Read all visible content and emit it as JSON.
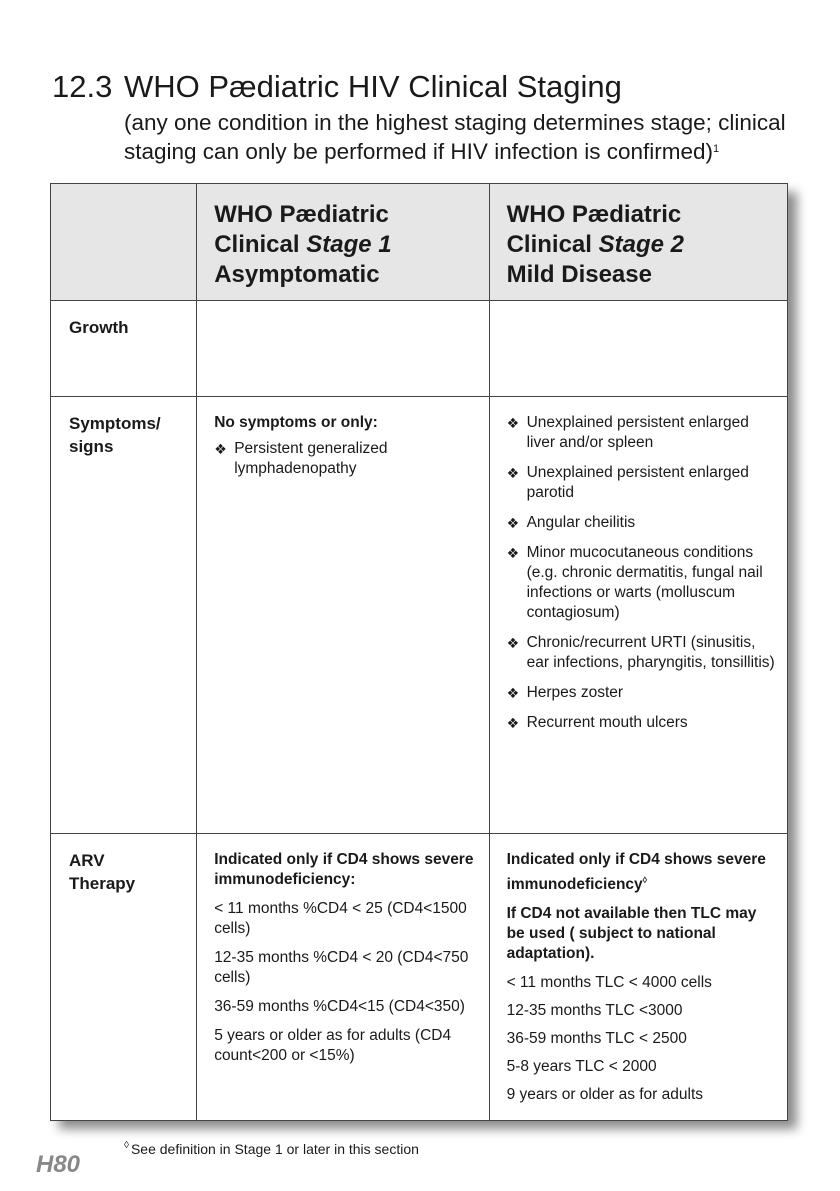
{
  "section": {
    "number": "12.3",
    "title": "WHO Pædiatric HIV Clinical Staging",
    "subtitle": "(any one condition in the highest staging determines stage; clinical staging can only be performed if HIV infection is confirmed)",
    "subtitle_sup": "1"
  },
  "table": {
    "headers": [
      {
        "line1": "",
        "line2_prefix": "",
        "line2_em": "",
        "line3": ""
      },
      {
        "line1": "WHO Pædiatric",
        "line2_prefix": "Clinical ",
        "line2_em": "Stage 1",
        "line3": "Asymptomatic"
      },
      {
        "line1": "WHO Pædiatric",
        "line2_prefix": "Clinical ",
        "line2_em": "Stage 2",
        "line3": "Mild Disease"
      }
    ],
    "rows": {
      "growth": {
        "label": "Growth"
      },
      "signs": {
        "label": "Symptoms/ signs",
        "stage1_intro": "No symptoms or only:",
        "stage1_items": [
          "Persistent generalized lymphadenopathy"
        ],
        "stage2_items": [
          "Unexplained persistent enlarged liver and/or spleen",
          "Unexplained persistent enlarged parotid",
          "Angular cheilitis",
          "Minor mucocutaneous conditions (e.g. chronic dermatitis, fungal nail infections or warts (molluscum contagiosum)",
          "Chronic/recurrent URTI (sinusitis, ear infections, pharyngitis, tonsillitis)",
          "Herpes zoster",
          "Recurrent mouth ulcers"
        ]
      },
      "arv": {
        "label": "ARV Therapy",
        "stage1_intro": "Indicated only if CD4 shows severe immunodeficiency:",
        "stage1_items": [
          "< 11 months %CD4 < 25 (CD4<1500 cells)",
          "12-35 months %CD4 < 20 (CD4<750 cells)",
          "36-59 months %CD4<15 (CD4<350)",
          "5 years or older as for adults (CD4 count<200 or <15%)"
        ],
        "stage2_intro": "Indicated only if CD4 shows severe immunodeficiency",
        "stage2_intro_mark": "◊",
        "stage2_intro2": "If CD4 not available then TLC may be used ( subject to national adaptation).",
        "stage2_items": [
          "< 11 months TLC <  4000 cells",
          "12-35 months  TLC <3000",
          "36-59  months  TLC < 2500",
          "5-8  years TLC < 2000",
          "9 years or older as for adults"
        ]
      }
    },
    "bullet_glyph": "❖"
  },
  "footnote": {
    "mark": "◊",
    "text": "See definition in Stage 1 or later in this section"
  },
  "page_number": "H80"
}
